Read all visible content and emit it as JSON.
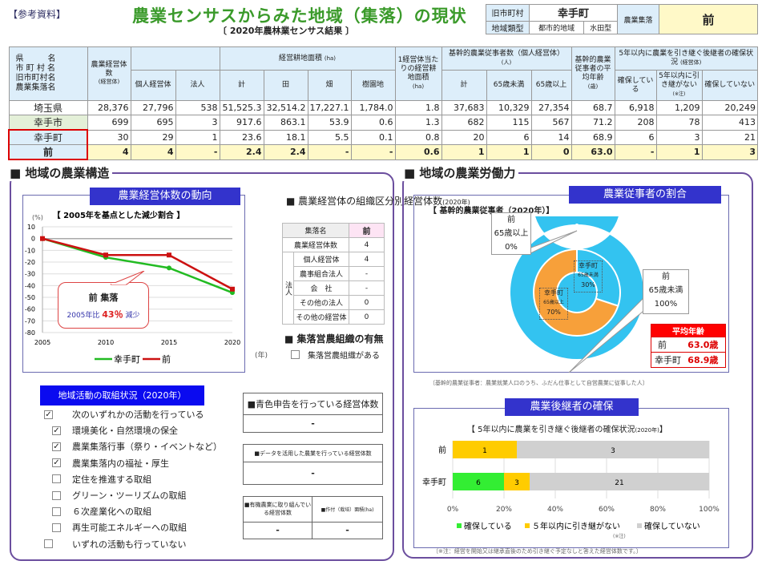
{
  "header": {
    "ref": "【参考資料】",
    "title": "農業センサスからみた地域（集落）の現状",
    "subtitle": "〔 2020年農林業センサス結果 〕",
    "info": {
      "old_muni_label": "旧市町村",
      "old_muni": "幸手町",
      "region_type_label": "地域類型",
      "region_type1": "都市的地域",
      "region_type2": "水田型",
      "village_label": "農業集落",
      "village": "前"
    }
  },
  "table": {
    "name_header": [
      "県　　　名",
      "市 町 村 名",
      "旧市町村名",
      "農業集落名"
    ],
    "h_entities": "農業経営体数",
    "h_entities_unit": "(経営体)",
    "h_indiv": "個人経営体",
    "h_corp": "法人",
    "h_area": "経営耕地面積",
    "h_area_unit": "(ha)",
    "h_total": "計",
    "h_paddy": "田",
    "h_field": "畑",
    "h_orchard": "樹園地",
    "h_per": "1経営体当たりの経営耕地面積",
    "h_per_unit": "(ha)",
    "h_workers": "基幹的農業従事者数（個人経営体）",
    "h_workers_unit": "(人)",
    "h_wtotal": "計",
    "h_under65": "65歳未満",
    "h_over65": "65歳以上",
    "h_age": "基幹的農業従事者の平均年齢",
    "h_age_unit": "(歳)",
    "h_succ": "5年以内に農業を引き継ぐ後継者の確保状況",
    "h_succ_unit": "(経営体)",
    "h_yes": "確保している",
    "h_nonot": "5年以内に引き継がない",
    "h_nonot_note": "(※注)",
    "h_no": "確保していない",
    "rows": [
      {
        "name": "埼玉県",
        "v": [
          "28,376",
          "27,796",
          "538",
          "51,525.3",
          "32,514.2",
          "17,227.1",
          "1,784.0",
          "1.8",
          "37,683",
          "10,329",
          "27,354",
          "68.7",
          "6,918",
          "1,209",
          "20,249"
        ]
      },
      {
        "name": "幸手市",
        "v": [
          "699",
          "695",
          "3",
          "917.6",
          "863.1",
          "53.9",
          "0.6",
          "1.3",
          "682",
          "115",
          "567",
          "71.2",
          "208",
          "78",
          "413"
        ]
      },
      {
        "name": "幸手町",
        "v": [
          "30",
          "29",
          "1",
          "23.6",
          "18.1",
          "5.5",
          "0.1",
          "0.8",
          "20",
          "6",
          "14",
          "68.9",
          "6",
          "3",
          "21"
        ]
      },
      {
        "name": "前",
        "v": [
          "4",
          "4",
          "-",
          "2.4",
          "2.4",
          "-",
          "-",
          "0.6",
          "1",
          "1",
          "0",
          "63.0",
          "-",
          "1",
          "3"
        ]
      }
    ]
  },
  "structure": {
    "heading": "■ 地域の農業構造",
    "trend_banner": "農業経営体数の動向",
    "year_unit": "(年)",
    "org_heading": "■ 農業経営体の組織区分別経営体数",
    "org_year": "(2020年)",
    "org": {
      "col_label": "集落名",
      "col_value": "前",
      "total_label": "農業経営体数",
      "total": "4",
      "indiv_label": "個人経営体",
      "indiv": "4",
      "corp_label": "法人",
      "coop_label": "農事組合法人",
      "coop": "-",
      "company_label": "会　社",
      "company": "-",
      "other_corp_label": "その他の法人",
      "other_corp": "0",
      "other_label": "その他の経営体",
      "other": "0"
    },
    "group_heading": "■ 集落営農組織の有無",
    "group_item": "集落営農組織がある",
    "group_checked": false,
    "callout_title": "前 集落",
    "callout_prefix": "2005年比",
    "callout_value": "43％",
    "callout_suffix": "減少",
    "activities_banner": "地域活動の取組状況（2020年）",
    "activities": [
      {
        "label": "次のいずれかの活動を行っている",
        "checked": true,
        "indent": false
      },
      {
        "label": "環境美化・自然環境の保全",
        "checked": true,
        "indent": true
      },
      {
        "label": "農業集落行事（祭り・イベントなど）",
        "checked": true,
        "indent": true
      },
      {
        "label": "農業集落内の福祉・厚生",
        "checked": true,
        "indent": true
      },
      {
        "label": "定住を推進する取組",
        "checked": false,
        "indent": true
      },
      {
        "label": "グリーン・ツーリズムの取組",
        "checked": false,
        "indent": true
      },
      {
        "label": "６次産業化への取組",
        "checked": false,
        "indent": true
      },
      {
        "label": "再生可能エネルギーへの取組",
        "checked": false,
        "indent": true
      },
      {
        "label": "いずれの活動も行っていない",
        "checked": false,
        "indent": false
      }
    ],
    "blue_label": "■青色申告を行っている経営体数",
    "blue_value": "-",
    "data_label": "■データを活用した農業を行っている経営体数",
    "data_value": "-",
    "organic_label": "■有機農業に取り組んでいる経営体数",
    "organic_value": "-",
    "organic_area_label": "■作付（栽培）面積(ha)",
    "organic_area_value": "-"
  },
  "labor": {
    "heading": "■ 地域の農業労働力",
    "banner": "農業従事者の割合",
    "footnote": "〔基幹的農業従事者：農業就業人口のうち、ふだん仕事として自営農業に従事した人〕",
    "avg_title": "平均年齢",
    "avg": [
      {
        "name": "前",
        "value": "63.0歳"
      },
      {
        "name": "幸手町",
        "value": "68.9歳"
      }
    ],
    "succ_banner": "農業後継者の確保",
    "succ_footnote": "〔※注：経営を開始又は継承直後のため引き継ぐ予定なしと答えた経営体数です。〕"
  },
  "chart_data": [
    {
      "type": "line",
      "title": "【 2005年を基点とした減少割合 】",
      "ylabel": "(%)",
      "xlabel": "(年)",
      "x": [
        2005,
        2010,
        2015,
        2020
      ],
      "ylim": [
        -80,
        10
      ],
      "yticks": [
        10,
        0,
        -10,
        -20,
        -30,
        -40,
        -50,
        -60,
        -70,
        -80
      ],
      "grid": true,
      "legend": "bottom",
      "series": [
        {
          "name": "幸手町",
          "color": "#22bb22",
          "values": [
            0,
            -16,
            -25,
            -46
          ]
        },
        {
          "name": "前",
          "color": "#cc1111",
          "values": [
            0,
            -14,
            -14,
            -43
          ]
        }
      ]
    },
    {
      "type": "pie",
      "title": "【 基幹的農業従事者（2020年）】",
      "rings": [
        {
          "name": "前",
          "slices": [
            {
              "label": "65歳未満",
              "value": 100,
              "color": "#33c3f0"
            },
            {
              "label": "65歳以上",
              "value": 0,
              "color": "#f7a03a"
            }
          ]
        },
        {
          "name": "幸手町",
          "slices": [
            {
              "label": "65歳未満",
              "value": 30,
              "color": "#33c3f0"
            },
            {
              "label": "65歳以上",
              "value": 70,
              "color": "#f7a03a"
            }
          ]
        }
      ]
    },
    {
      "type": "bar",
      "stacked": "percent",
      "title": "【 5年以内に農業を引き継ぐ後継者の確保状況",
      "title_year": "(2020年)",
      "title_end": "】",
      "categories": [
        "前",
        "幸手町"
      ],
      "xticks": [
        "0%",
        "20%",
        "40%",
        "60%",
        "80%",
        "100%"
      ],
      "legend": "bottom",
      "legend_note": "(※注)",
      "series": [
        {
          "name": "確保している",
          "color": "#33ee33",
          "values": [
            0,
            6
          ]
        },
        {
          "name": "５年以内に引き継がない",
          "color": "#ffcc00",
          "values": [
            1,
            3
          ]
        },
        {
          "name": "確保していない",
          "color": "#d0d0d0",
          "values": [
            3,
            21
          ]
        }
      ]
    }
  ]
}
